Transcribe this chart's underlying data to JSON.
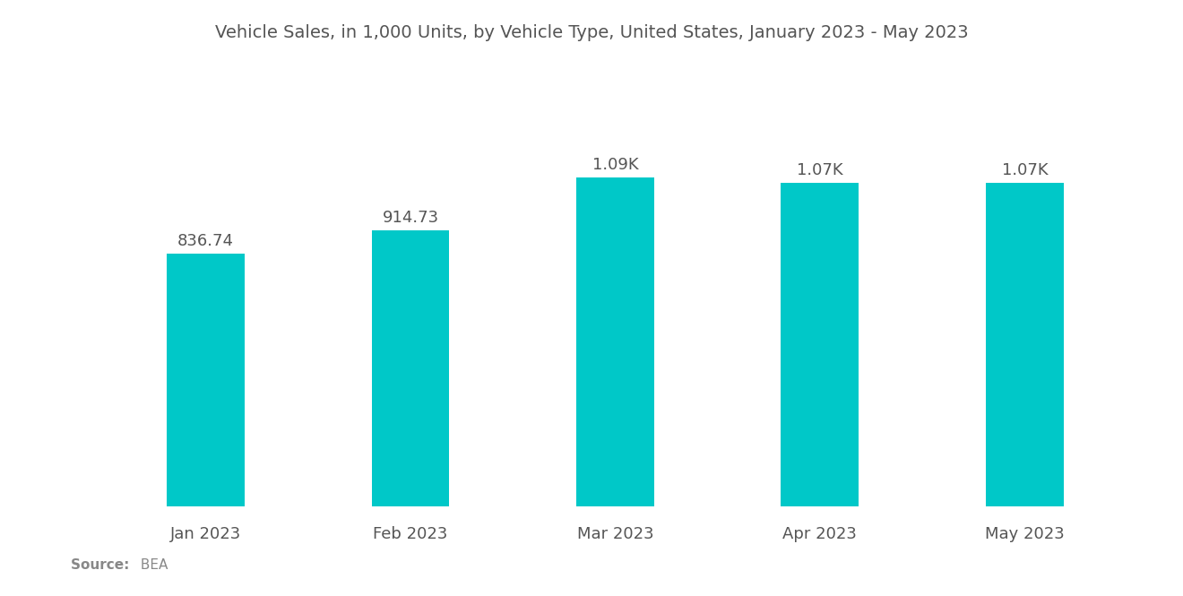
{
  "title": "Vehicle Sales, in 1,000 Units, by Vehicle Type, United States, January 2023 - May 2023",
  "categories": [
    "Jan 2023",
    "Feb 2023",
    "Mar 2023",
    "Apr 2023",
    "May 2023"
  ],
  "values": [
    836.74,
    914.73,
    1090.0,
    1070.0,
    1070.0
  ],
  "labels": [
    "836.74",
    "914.73",
    "1.09K",
    "1.07K",
    "1.07K"
  ],
  "bar_color": "#00C8C8",
  "background_color": "#ffffff",
  "title_color": "#555555",
  "label_color": "#555555",
  "tick_color": "#555555",
  "source_text": "Source:  BEA",
  "source_bold": "Source:",
  "source_normal": "  BEA",
  "source_color": "#888888",
  "title_fontsize": 14,
  "label_fontsize": 13,
  "tick_fontsize": 13,
  "source_fontsize": 11,
  "bar_width": 0.38,
  "ylim_min": 0,
  "ylim_max": 1400
}
